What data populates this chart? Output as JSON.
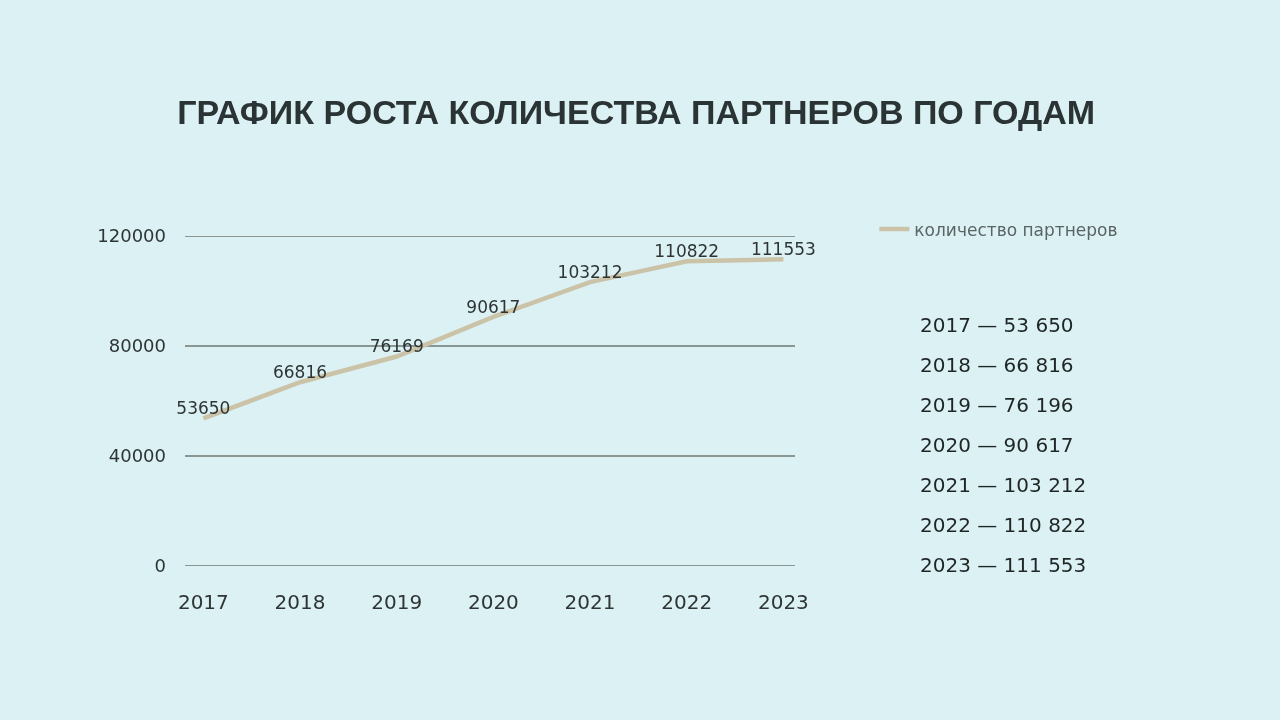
{
  "chart_data": {
    "type": "line",
    "title": "ГРАФИК РОСТА КОЛИЧЕСТВА ПАРТНЕРОВ ПО ГОДАМ",
    "categories": [
      "2017",
      "2018",
      "2019",
      "2020",
      "2021",
      "2022",
      "2023"
    ],
    "series": [
      {
        "name": "количество партнеров",
        "color": "#cbc3a8",
        "values": [
          53650,
          66816,
          76169,
          90617,
          103212,
          110822,
          111553
        ]
      }
    ],
    "ylim": [
      0,
      120000
    ],
    "yticks": [
      0,
      40000,
      80000,
      120000
    ],
    "grid": "y",
    "legend": "top right",
    "data_labels": true,
    "marker": "none",
    "line_style": "solid",
    "annotations": [
      "2017 — 53 650",
      "2018 — 66 816",
      "2019 — 76 196",
      "2020 — 90 617",
      "2021 — 103 212",
      "2022 — 110 822",
      "2023 — 111 553"
    ]
  }
}
